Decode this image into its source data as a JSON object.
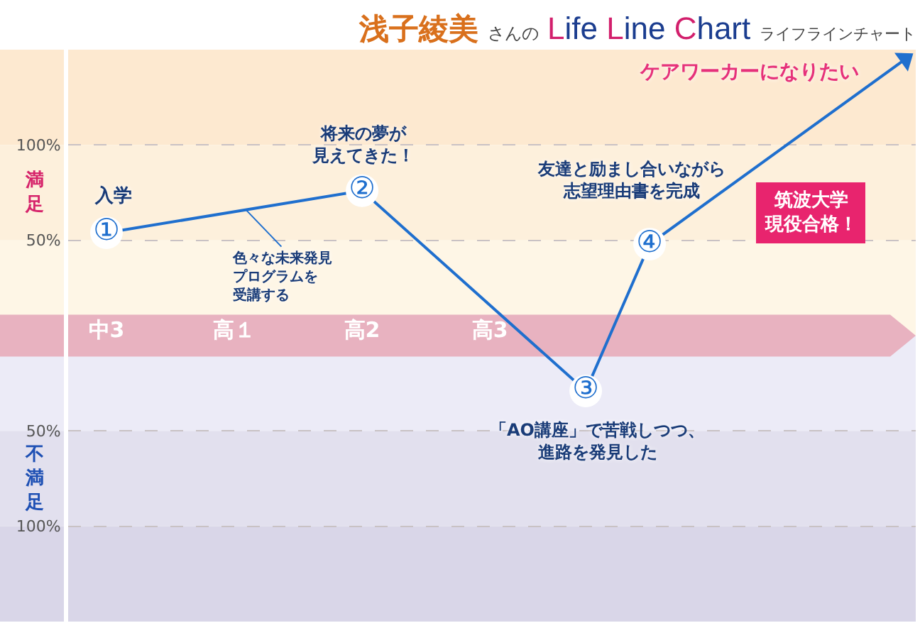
{
  "chart_data": {
    "type": "line",
    "title": "浅子綾美 さんの Life Line Chart ライフラインチャート",
    "categories": [
      "中3",
      null,
      null,
      null,
      "高１",
      null,
      null,
      null,
      "高2",
      null,
      null,
      null,
      "高3",
      null,
      null,
      null,
      null,
      null,
      null,
      null,
      null,
      null,
      null,
      null,
      null,
      null
    ],
    "series": [
      {
        "color": "#1f6fce",
        "values": [
          54,
          null,
          null,
          null,
          null,
          null,
          null,
          null,
          76,
          null,
          null,
          null,
          null,
          null,
          null,
          -29,
          null,
          48,
          null,
          null,
          null,
          null,
          null,
          null,
          null,
          145
        ],
        "value_labels": [
          "①",
          null,
          null,
          null,
          null,
          null,
          null,
          null,
          "②",
          null,
          null,
          null,
          null,
          null,
          null,
          "③",
          null,
          "④",
          null,
          null,
          null,
          null,
          null,
          null,
          null,
          null
        ]
      }
    ],
    "ylim": [
      -150,
      150
    ],
    "yticks": [
      {
        "value": -100,
        "label": "100%"
      },
      {
        "value": -50,
        "label": "50%"
      },
      {
        "value": 50,
        "label": "50%"
      },
      {
        "value": 100,
        "label": "100%"
      }
    ],
    "grid": "y",
    "marker": "circle",
    "line_style": "solid",
    "bands": [
      {
        "axis": "y",
        "from": 100,
        "to": 150,
        "color": "#fde9d0"
      },
      {
        "axis": "y",
        "from": 50,
        "to": 100,
        "color": "#fdf0dc"
      },
      {
        "axis": "y",
        "from": 0,
        "to": 50,
        "color": "#fef6e6"
      },
      {
        "axis": "y",
        "from": -50,
        "to": 0,
        "color": "#ecebf7"
      },
      {
        "axis": "y",
        "from": -100,
        "to": -50,
        "color": "#e2e0ee"
      },
      {
        "axis": "y",
        "from": -150,
        "to": -100,
        "color": "#d9d6e8"
      },
      {
        "axis": "y",
        "from": -11,
        "to": 11,
        "color": "#e8b2c0"
      }
    ],
    "annotations": [
      {
        "text": "入学",
        "x": "中3",
        "y": 54
      },
      {
        "text": "将来の夢が見えてきた！",
        "x": "高2",
        "y": 76
      },
      {
        "text": "色々な未来発見プログラムを受講する",
        "y": 66
      },
      "「AO講座」で苦戦しつつ、進路を発見した",
      {
        "text": "友達と励まし合いながら志望理由書を完成",
        "y": 48
      },
      "ケアワーカーになりたい",
      "筑波大学現役合格！",
      "満足",
      "不満足"
    ]
  }
}
